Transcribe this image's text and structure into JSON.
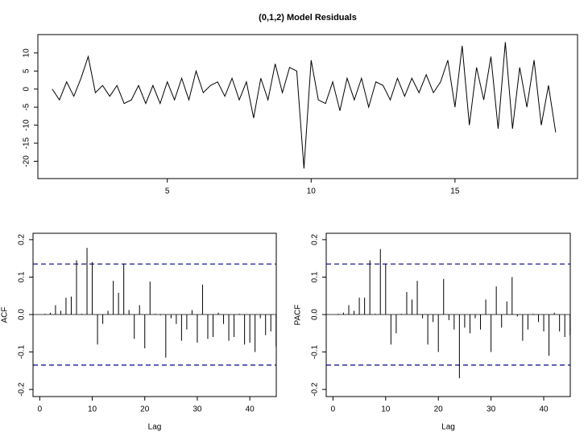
{
  "chart_data": [
    {
      "type": "line",
      "title": "(0,1,2) Model Residuals",
      "color": "#000000",
      "x": [
        1,
        1.25,
        1.5,
        1.75,
        2,
        2.25,
        2.5,
        2.75,
        3,
        3.25,
        3.5,
        3.75,
        4,
        4.25,
        4.5,
        4.75,
        5,
        5.25,
        5.5,
        5.75,
        6,
        6.25,
        6.5,
        6.75,
        7,
        7.25,
        7.5,
        7.75,
        8,
        8.25,
        8.5,
        8.75,
        9,
        9.25,
        9.5,
        9.75,
        10,
        10.25,
        10.5,
        10.75,
        11,
        11.25,
        11.5,
        11.75,
        12,
        12.25,
        12.5,
        12.75,
        13,
        13.25,
        13.5,
        13.75,
        14,
        14.25,
        14.5,
        14.75,
        15,
        15.25,
        15.5,
        15.75,
        16,
        16.25,
        16.5,
        16.75,
        17,
        17.25,
        17.5,
        17.75,
        18,
        18.25,
        18.5
      ],
      "values": [
        0,
        -3,
        2,
        -2,
        3,
        9,
        -1,
        1,
        -2,
        1,
        -4,
        -3,
        1,
        -4,
        1,
        -4,
        2,
        -3,
        3,
        -3,
        5,
        -1,
        1,
        2,
        -2,
        3,
        -3,
        2,
        -8,
        3,
        -3,
        7,
        -1,
        6,
        5,
        -22,
        8,
        -3,
        -4,
        2,
        -6,
        3,
        -3,
        3,
        -5,
        2,
        1,
        -3,
        3,
        -2,
        3,
        -1,
        4,
        -1,
        2,
        8,
        -5,
        12,
        -10,
        6,
        -3,
        9,
        -11,
        13,
        -11,
        6,
        -5,
        8,
        -10,
        1,
        -12
      ],
      "xlim": [
        0.5,
        19.26
      ],
      "xticks": [
        5,
        10,
        15
      ],
      "ylim": [
        -24.8,
        15.1
      ],
      "yticks": [
        -20,
        -15,
        -10,
        -5,
        0,
        5,
        10
      ]
    },
    {
      "type": "stem",
      "color": "#000000",
      "ylabel": "ACF",
      "xlabel": "Lag",
      "x": [
        1,
        2,
        3,
        4,
        5,
        6,
        7,
        8,
        9,
        10,
        11,
        12,
        13,
        14,
        15,
        16,
        17,
        18,
        19,
        20,
        21,
        22,
        23,
        24,
        25,
        26,
        27,
        28,
        29,
        30,
        31,
        32,
        33,
        34,
        35,
        36,
        37,
        38,
        39,
        40,
        41,
        42,
        43,
        44,
        45
      ],
      "values": [
        0.002,
        0.005,
        0.025,
        0.01,
        0.045,
        0.048,
        0.145,
        0.002,
        0.178,
        0.14,
        -0.08,
        -0.025,
        0.01,
        0.09,
        0.058,
        0.135,
        0.012,
        -0.065,
        0.025,
        -0.09,
        0.088,
        0.002,
        -0.002,
        -0.115,
        -0.01,
        -0.025,
        -0.07,
        -0.04,
        0.012,
        -0.075,
        0.08,
        -0.065,
        -0.06,
        0.005,
        -0.025,
        -0.07,
        -0.06,
        0.002,
        -0.08,
        -0.075,
        -0.1,
        -0.01,
        -0.055,
        -0.045,
        -0.085
      ],
      "xlim": [
        -1.28,
        45.04
      ],
      "xticks": [
        0,
        10,
        20,
        30,
        40
      ],
      "ylim": [
        -0.219,
        0.217
      ],
      "yticks": [
        -0.2,
        -0.1,
        {
          "value": 0,
          "label": "0.0"
        },
        0.1,
        0.2
      ],
      "reference_lines": [
        0.135,
        -0.135
      ],
      "reference_color": "#00008b"
    },
    {
      "type": "stem",
      "color": "#000000",
      "ylabel": "PACF",
      "xlabel": "Lag",
      "x": [
        1,
        2,
        3,
        4,
        5,
        6,
        7,
        8,
        9,
        10,
        11,
        12,
        13,
        14,
        15,
        16,
        17,
        18,
        19,
        20,
        21,
        22,
        23,
        24,
        25,
        26,
        27,
        28,
        29,
        30,
        31,
        32,
        33,
        34,
        35,
        36,
        37,
        38,
        39,
        40,
        41,
        42,
        43,
        44,
        45
      ],
      "values": [
        0.002,
        0.005,
        0.025,
        0.01,
        0.045,
        0.045,
        0.145,
        0.002,
        0.175,
        0.135,
        -0.08,
        -0.05,
        0.002,
        0.06,
        0.04,
        0.09,
        -0.01,
        -0.08,
        -0.02,
        -0.1,
        0.095,
        -0.015,
        -0.04,
        -0.17,
        -0.035,
        -0.05,
        -0.01,
        -0.04,
        0.04,
        -0.1,
        0.075,
        -0.035,
        0.035,
        0.1,
        -0.005,
        -0.07,
        -0.04,
        0.002,
        -0.02,
        -0.045,
        -0.11,
        0.005,
        -0.045,
        -0.06,
        -0.055
      ],
      "xlim": [
        -1.28,
        45.04
      ],
      "xticks": [
        0,
        10,
        20,
        30,
        40
      ],
      "ylim": [
        -0.219,
        0.217
      ],
      "yticks": [
        -0.2,
        -0.1,
        {
          "value": 0,
          "label": "0.0"
        },
        0.1,
        0.2
      ],
      "reference_lines": [
        0.135,
        -0.135
      ],
      "reference_color": "#00008b"
    }
  ]
}
